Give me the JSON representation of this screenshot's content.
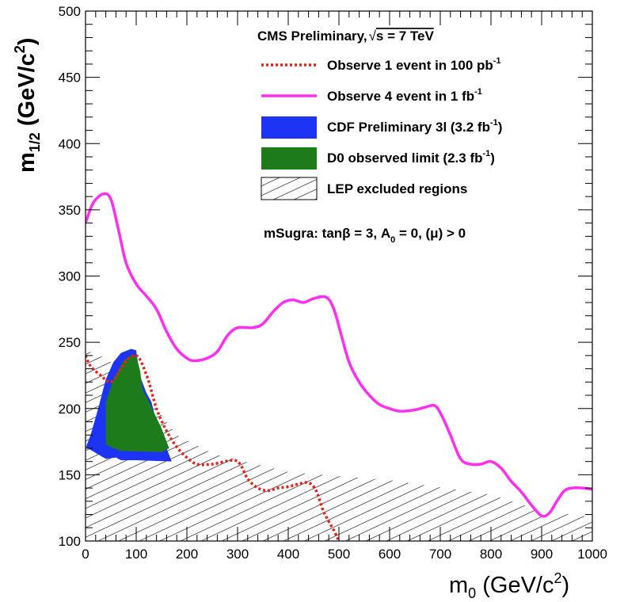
{
  "chart_data": {
    "type": "line",
    "xlabel": "m0 (GeV/c2)",
    "ylabel": "m1/2 (GeV/c2)",
    "xlim": [
      0,
      1000
    ],
    "ylim": [
      100,
      500
    ],
    "x_ticks": [
      "0",
      "100",
      "200",
      "300",
      "400",
      "500",
      "600",
      "700",
      "800",
      "900",
      "1000"
    ],
    "y_ticks": [
      "100",
      "150",
      "200",
      "250",
      "300",
      "350",
      "400",
      "450",
      "500"
    ],
    "grid": false,
    "legend_position": "top-right",
    "title": "CMS Preliminary, √s = 7 TeV",
    "annotation": "mSugra: tanβ = 3, A0 = 0, (μ) > 0",
    "series": [
      {
        "name": "Observe 1 event in 100 pb-1",
        "style": "dotted",
        "color": "#e8201a",
        "points": [
          [
            0,
            240
          ],
          [
            10,
            232
          ],
          [
            30,
            225
          ],
          [
            50,
            220
          ],
          [
            70,
            230
          ],
          [
            85,
            238
          ],
          [
            100,
            240
          ],
          [
            110,
            235
          ],
          [
            125,
            220
          ],
          [
            140,
            200
          ],
          [
            160,
            183
          ],
          [
            180,
            171
          ],
          [
            200,
            163
          ],
          [
            220,
            158
          ],
          [
            250,
            158
          ],
          [
            290,
            161
          ],
          [
            305,
            158
          ],
          [
            320,
            147
          ],
          [
            340,
            140
          ],
          [
            360,
            138
          ],
          [
            380,
            140
          ],
          [
            400,
            141
          ],
          [
            420,
            143
          ],
          [
            440,
            144
          ],
          [
            455,
            138
          ],
          [
            470,
            122
          ],
          [
            490,
            108
          ],
          [
            500,
            100
          ]
        ]
      },
      {
        "name": "Observe 4 event in 1 fb-1",
        "style": "solid",
        "color": "#ff2ef0",
        "points": [
          [
            0,
            340
          ],
          [
            15,
            355
          ],
          [
            35,
            362
          ],
          [
            50,
            358
          ],
          [
            65,
            335
          ],
          [
            80,
            310
          ],
          [
            100,
            294
          ],
          [
            120,
            285
          ],
          [
            140,
            275
          ],
          [
            160,
            258
          ],
          [
            180,
            245
          ],
          [
            200,
            238
          ],
          [
            215,
            236
          ],
          [
            240,
            238
          ],
          [
            260,
            243
          ],
          [
            280,
            255
          ],
          [
            300,
            261
          ],
          [
            330,
            261
          ],
          [
            350,
            264
          ],
          [
            370,
            273
          ],
          [
            390,
            280
          ],
          [
            410,
            282
          ],
          [
            430,
            280
          ],
          [
            450,
            283
          ],
          [
            475,
            284
          ],
          [
            490,
            275
          ],
          [
            505,
            255
          ],
          [
            520,
            235
          ],
          [
            540,
            220
          ],
          [
            560,
            210
          ],
          [
            580,
            203
          ],
          [
            600,
            200
          ],
          [
            620,
            198
          ],
          [
            650,
            199
          ],
          [
            670,
            201
          ],
          [
            690,
            202
          ],
          [
            705,
            193
          ],
          [
            720,
            180
          ],
          [
            740,
            162
          ],
          [
            760,
            158
          ],
          [
            780,
            158
          ],
          [
            800,
            160
          ],
          [
            820,
            155
          ],
          [
            840,
            145
          ],
          [
            860,
            137
          ],
          [
            880,
            127
          ],
          [
            900,
            119
          ],
          [
            915,
            121
          ],
          [
            930,
            130
          ],
          [
            945,
            138
          ],
          [
            960,
            140
          ],
          [
            980,
            140
          ],
          [
            1000,
            139
          ]
        ]
      }
    ],
    "regions": [
      {
        "name": "CDF Preliminary 3l (3.2 fb-1)",
        "color": "#1e34f5",
        "polygon": [
          [
            0,
            170
          ],
          [
            10,
            180
          ],
          [
            25,
            200
          ],
          [
            40,
            222
          ],
          [
            55,
            235
          ],
          [
            70,
            242
          ],
          [
            90,
            245
          ],
          [
            100,
            244
          ],
          [
            105,
            230
          ],
          [
            110,
            222
          ],
          [
            120,
            212
          ],
          [
            130,
            205
          ],
          [
            140,
            190
          ],
          [
            150,
            178
          ],
          [
            160,
            170
          ],
          [
            170,
            160
          ],
          [
            100,
            161
          ],
          [
            70,
            161
          ],
          [
            60,
            163
          ],
          [
            40,
            162
          ],
          [
            0,
            171
          ]
        ]
      },
      {
        "name": "D0 observed limit (2.3 fb-1)",
        "color": "#1d7b1c",
        "polygon": [
          [
            40,
            173
          ],
          [
            40,
            205
          ],
          [
            55,
            222
          ],
          [
            75,
            236
          ],
          [
            90,
            240
          ],
          [
            100,
            240
          ],
          [
            108,
            228
          ],
          [
            112,
            215
          ],
          [
            125,
            205
          ],
          [
            135,
            197
          ],
          [
            150,
            185
          ],
          [
            165,
            170
          ],
          [
            150,
            167
          ],
          [
            70,
            168
          ],
          [
            55,
            170
          ],
          [
            45,
            172
          ]
        ]
      },
      {
        "name": "LEP excluded regions",
        "color": "#000000",
        "pattern": "hatched",
        "polygon": [
          [
            0,
            100
          ],
          [
            0,
            244
          ],
          [
            40,
            238
          ],
          [
            80,
            226
          ],
          [
            110,
            213
          ],
          [
            140,
            200
          ],
          [
            180,
            180
          ],
          [
            250,
            166
          ],
          [
            400,
            152
          ],
          [
            600,
            146
          ],
          [
            800,
            135
          ],
          [
            900,
            123
          ],
          [
            1000,
            118
          ],
          [
            1000,
            100
          ]
        ]
      }
    ]
  },
  "legend": {
    "header": "CMS Preliminary,",
    "header_sqrt": "s = 7 TeV",
    "entry1": "Observe 1 event in 100 pb",
    "entry1_sup": "-1",
    "entry2": "Observe 4 event in 1 fb",
    "entry2_sup": "-1",
    "entry3": "CDF Preliminary 3l (3.2 fb",
    "entry3_sup": "-1",
    "entry3_end": ")",
    "entry4": "D0 observed limit (2.3 fb",
    "entry4_sup": "-1",
    "entry4_end": ")",
    "entry5": "LEP excluded regions",
    "note_pre": "mSugra: tanβ = 3, A",
    "note_sub": "0",
    "note_post": " = 0, (μ) > 0"
  },
  "axes": {
    "x_label_main": "m",
    "x_label_sub": "0",
    "x_label_rest": " (GeV/c",
    "x_label_sup": "2",
    "x_label_end": ")",
    "y_label_main": "m",
    "y_label_sub": "1/2",
    "y_label_rest": " (GeV/c",
    "y_label_sup": "2",
    "y_label_end": ")"
  }
}
